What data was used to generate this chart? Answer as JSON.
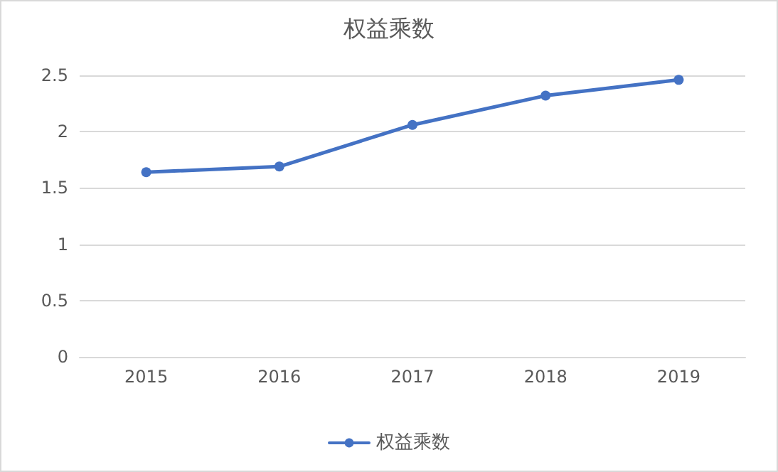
{
  "chart_data": {
    "type": "line",
    "title": "权益乘数",
    "categories": [
      "2015",
      "2016",
      "2017",
      "2018",
      "2019"
    ],
    "series": [
      {
        "name": "权益乘数",
        "color": "#4472c4",
        "values": [
          1.64,
          1.69,
          2.06,
          2.32,
          2.46
        ]
      }
    ],
    "ylim": [
      0,
      2.5
    ],
    "yticks": [
      0,
      0.5,
      1,
      1.5,
      2,
      2.5
    ],
    "grid": "y",
    "legend": "bottom",
    "marker": "circle",
    "line_style": "solid"
  }
}
